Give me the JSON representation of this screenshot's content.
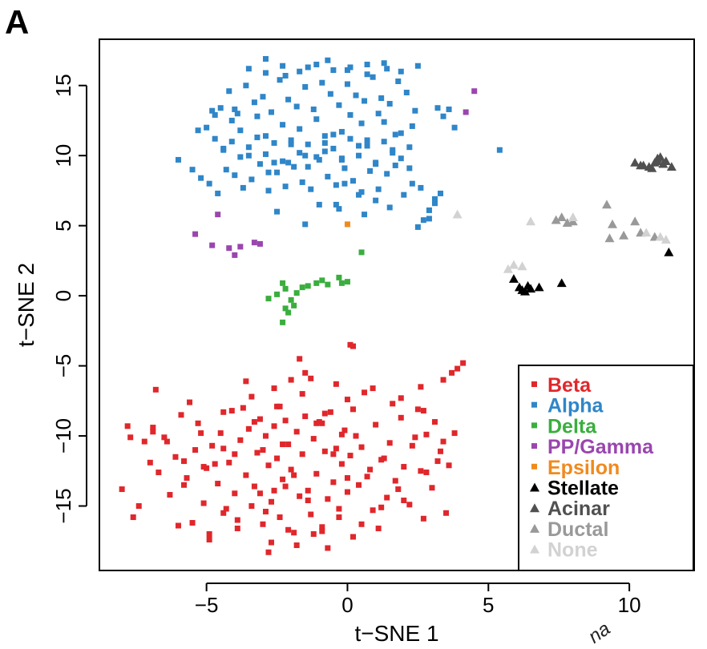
{
  "panel_label": "A",
  "colors": {
    "Beta": "#e0272b",
    "Alpha": "#2f86c8",
    "Delta": "#3aae3e",
    "PP/Gamma": "#9a46ae",
    "Epsilon": "#f08a1e",
    "Stellate": "#000000",
    "Acinar": "#505050",
    "Ductal": "#999999",
    "None": "#d2d2d2"
  },
  "legend_position": "bottom-right",
  "stray_text": "na",
  "chart_data": {
    "type": "scatter",
    "title": "",
    "xlabel": "t−SNE 1",
    "ylabel": "t−SNE 2",
    "xlim": [
      -8.8,
      12.3
    ],
    "ylim": [
      -19.6,
      18.3
    ],
    "xticks": [
      -5,
      0,
      5,
      10
    ],
    "yticks": [
      -15,
      -10,
      -5,
      0,
      5,
      10,
      15
    ],
    "xtick_labels": [
      "−5",
      "0",
      "5",
      "10"
    ],
    "ytick_labels": [
      "−15",
      "−10",
      "−5",
      "0",
      "5",
      "10",
      "15"
    ],
    "grid": false,
    "legend": [
      {
        "name": "Beta",
        "marker": "square"
      },
      {
        "name": "Alpha",
        "marker": "square"
      },
      {
        "name": "Delta",
        "marker": "square"
      },
      {
        "name": "PP/Gamma",
        "marker": "square"
      },
      {
        "name": "Epsilon",
        "marker": "square"
      },
      {
        "name": "Stellate",
        "marker": "triangle"
      },
      {
        "name": "Acinar",
        "marker": "triangle"
      },
      {
        "name": "Ductal",
        "marker": "triangle"
      },
      {
        "name": "None",
        "marker": "triangle"
      }
    ],
    "series": [
      {
        "name": "Beta",
        "marker": "square",
        "x": [
          -8.0,
          -7.6,
          -7.2,
          -6.9,
          -6.7,
          -6.5,
          -6.3,
          -6.1,
          -5.9,
          -5.7,
          -5.5,
          -5.4,
          -5.3,
          -5.1,
          -5.0,
          -4.9,
          -4.8,
          -4.6,
          -4.5,
          -4.4,
          -4.2,
          -4.1,
          -4.0,
          -3.9,
          -3.8,
          -3.6,
          -3.5,
          -3.4,
          -3.3,
          -3.2,
          -3.1,
          -3.0,
          -2.9,
          -2.8,
          -2.7,
          -2.6,
          -2.5,
          -2.4,
          -2.3,
          -2.2,
          -2.1,
          -2.0,
          -1.9,
          -1.8,
          -1.7,
          -1.6,
          -1.5,
          -1.4,
          -1.3,
          -1.2,
          -1.1,
          -1.0,
          -0.9,
          -0.8,
          -0.7,
          -0.6,
          -0.5,
          -0.4,
          -0.3,
          -0.2,
          -0.1,
          0.0,
          0.1,
          0.2,
          0.4,
          0.5,
          0.7,
          0.9,
          1.0,
          1.2,
          1.4,
          1.5,
          1.7,
          1.9,
          2.0,
          2.2,
          2.4,
          2.6,
          2.8,
          3.0,
          3.2,
          3.4,
          3.6,
          3.8,
          -7.8,
          -7.0,
          -6.4,
          -5.8,
          -5.2,
          -4.7,
          -4.3,
          -3.7,
          -3.0,
          -2.6,
          -2.3,
          -1.9,
          -1.4,
          -0.9,
          -0.5,
          0.0,
          0.3,
          0.8,
          1.3,
          1.8,
          2.3,
          2.8,
          3.3,
          -6.8,
          -5.6,
          -4.4,
          -3.4,
          -2.5,
          -1.6,
          -0.8,
          0.0,
          0.6,
          1.6,
          2.5,
          -7.4,
          -6.0,
          -4.9,
          -3.9,
          -2.9,
          -2.1,
          -1.2,
          -0.3,
          0.5,
          1.2,
          2.0,
          2.7,
          3.5,
          -2.7,
          -1.8,
          -0.9,
          0.2,
          1.1,
          3.4,
          3.7,
          3.9,
          4.1,
          2.6,
          2.7,
          -2.8,
          -0.7,
          -1.7,
          0.1,
          0.2,
          -1.5,
          -2.0,
          -3.3,
          -4.4,
          -5.8,
          -6.9,
          -7.7,
          -5.1,
          -3.6,
          -2.4,
          -1.1,
          -0.2,
          -2.2,
          -3.1,
          -4.0,
          -2.6,
          -1.3,
          -0.4,
          0.9,
          1.9,
          3.1
        ],
        "y": [
          -13.8,
          -15.8,
          -10.4,
          -9.4,
          -12.6,
          -10.1,
          -14.2,
          -11.5,
          -8.5,
          -13.0,
          -16.2,
          -11.0,
          -9.1,
          -14.8,
          -12.3,
          -17.0,
          -10.7,
          -13.4,
          -9.8,
          -15.5,
          -11.9,
          -8.2,
          -14.1,
          -16.6,
          -10.3,
          -12.8,
          -9.5,
          -15.0,
          -13.6,
          -11.2,
          -8.8,
          -16.3,
          -10.0,
          -12.1,
          -14.7,
          -9.3,
          -11.6,
          -15.8,
          -13.1,
          -8.9,
          -10.6,
          -12.4,
          -16.9,
          -9.7,
          -14.3,
          -11.3,
          -8.6,
          -13.9,
          -15.6,
          -10.2,
          -12.7,
          -9.0,
          -16.5,
          -11.1,
          -14.5,
          -8.3,
          -13.3,
          -10.9,
          -15.2,
          -12.0,
          -9.6,
          -14.0,
          -11.4,
          -8.1,
          -13.5,
          -10.8,
          -12.9,
          -15.3,
          -9.2,
          -11.7,
          -14.4,
          -10.5,
          -13.2,
          -8.7,
          -12.2,
          -14.9,
          -10.1,
          -12.5,
          -9.9,
          -13.7,
          -11.8,
          -10.4,
          -12.1,
          -9.8,
          -9.3,
          -11.9,
          -10.4,
          -13.5,
          -9.8,
          -12.0,
          -15.2,
          -8.0,
          -11.0,
          -13.9,
          -10.6,
          -12.8,
          -14.6,
          -9.1,
          -11.3,
          -13.0,
          -10.0,
          -12.4,
          -11.6,
          -13.8,
          -10.7,
          -12.6,
          -11.1,
          -6.7,
          -7.6,
          -8.3,
          -7.2,
          -7.9,
          -7.0,
          -8.4,
          -7.4,
          -6.9,
          -7.7,
          -8.1,
          -15.0,
          -16.4,
          -17.4,
          -16.0,
          -15.4,
          -16.7,
          -17.0,
          -15.8,
          -16.3,
          -15.1,
          -14.6,
          -15.9,
          -15.5,
          -17.6,
          -17.8,
          -16.8,
          -17.2,
          -16.6,
          -6.0,
          -5.5,
          -5.2,
          -4.8,
          -6.5,
          -8.2,
          -18.3,
          -18.0,
          -4.5,
          -3.5,
          -3.6,
          -5.5,
          -6.0,
          -9.0,
          -10.9,
          -11.8,
          -9.7,
          -10.1,
          -12.2,
          -6.1,
          -7.9,
          -9.1,
          -9.9,
          -13.6,
          -14.1,
          -11.3,
          -6.6,
          -5.9,
          -6.3,
          -6.6,
          -7.3,
          -9.0
        ]
      },
      {
        "name": "Alpha",
        "marker": "square",
        "x": [
          -5.5,
          -5.0,
          -4.7,
          -4.4,
          -4.1,
          -3.8,
          -3.5,
          -3.2,
          -2.9,
          -2.6,
          -2.3,
          -2.0,
          -1.7,
          -1.4,
          -1.1,
          -0.8,
          -0.5,
          -0.2,
          0.1,
          0.4,
          0.7,
          1.0,
          1.3,
          1.6,
          1.9,
          2.2,
          -5.2,
          -4.9,
          -4.6,
          -4.3,
          -4.0,
          -3.7,
          -3.4,
          -3.1,
          -2.8,
          -2.5,
          -2.2,
          -1.9,
          -1.6,
          -1.3,
          -1.0,
          -0.7,
          -0.4,
          -0.1,
          0.2,
          0.5,
          0.8,
          1.1,
          1.4,
          1.7,
          2.0,
          2.3,
          2.6,
          -4.8,
          -4.5,
          -4.2,
          -3.9,
          -3.6,
          -3.3,
          -3.0,
          -2.7,
          -2.4,
          -2.1,
          -1.8,
          -1.5,
          -1.2,
          -0.9,
          -0.6,
          -0.3,
          0.0,
          0.3,
          0.6,
          0.9,
          1.2,
          1.5,
          1.8,
          2.1,
          2.4,
          -4.4,
          -4.1,
          -3.8,
          -3.5,
          -3.2,
          -2.9,
          -2.6,
          -2.3,
          -2.0,
          -1.7,
          -1.4,
          -1.1,
          -0.8,
          -0.5,
          -0.2,
          0.1,
          0.4,
          0.7,
          1.0,
          1.3,
          1.6,
          1.9,
          2.2,
          -3.5,
          -2.9,
          -2.3,
          -1.7,
          -1.1,
          -0.5,
          0.1,
          0.7,
          1.3,
          1.9,
          2.5,
          -2.9,
          -2.2,
          -1.4,
          -0.7,
          0.0,
          0.7,
          1.4,
          -6.0,
          -5.3,
          -4.7,
          -4.0,
          -2.8,
          -2.1,
          -1.5,
          -0.8,
          -0.2,
          0.5,
          1.1,
          1.7,
          2.3,
          -1.0,
          -0.3,
          0.4,
          1.0,
          3.2,
          3.4,
          3.6,
          3.8,
          3.1,
          2.9,
          2.7,
          2.5,
          2.9,
          3.1,
          3.3,
          -2.5,
          -1.5,
          -0.4,
          0.6,
          1.5,
          5.4,
          -0.1
        ],
        "y": [
          9.0,
          12.0,
          11.2,
          10.5,
          12.5,
          11.8,
          10.0,
          12.8,
          11.4,
          9.5,
          12.2,
          10.8,
          11.9,
          9.2,
          12.6,
          10.3,
          11.5,
          9.8,
          12.9,
          10.7,
          11.1,
          9.4,
          12.4,
          10.2,
          11.6,
          9.1,
          8.4,
          8.0,
          7.3,
          9.0,
          8.6,
          7.7,
          8.3,
          9.4,
          7.5,
          8.8,
          7.8,
          9.2,
          8.1,
          7.6,
          9.7,
          8.5,
          7.9,
          9.1,
          8.2,
          7.4,
          8.9,
          7.6,
          8.7,
          9.3,
          7.2,
          8.0,
          7.7,
          13.2,
          13.4,
          14.6,
          13.0,
          15.0,
          13.8,
          14.2,
          13.1,
          15.4,
          14.0,
          13.5,
          14.9,
          13.3,
          15.2,
          14.4,
          13.6,
          15.1,
          14.3,
          13.9,
          15.6,
          14.1,
          13.7,
          15.3,
          14.5,
          13.2,
          10.4,
          11.0,
          9.9,
          10.6,
          11.3,
          10.1,
          10.9,
          9.6,
          11.1,
          10.2,
          10.8,
          9.9,
          11.4,
          10.5,
          9.7,
          11.2,
          10.0,
          10.7,
          9.5,
          11.0,
          10.4,
          9.8,
          10.6,
          16.2,
          15.9,
          16.4,
          16.0,
          16.5,
          16.1,
          16.3,
          15.8,
          16.6,
          16.0,
          16.4,
          16.9,
          15.7,
          16.3,
          16.8,
          16.1,
          16.5,
          16.2,
          9.7,
          11.8,
          12.9,
          13.3,
          8.8,
          9.5,
          10.0,
          10.9,
          11.7,
          12.3,
          13.0,
          11.5,
          12.1,
          6.5,
          6.2,
          7.2,
          6.8,
          13.4,
          12.8,
          13.3,
          12.0,
          6.6,
          6.1,
          5.4,
          4.9,
          5.5,
          6.9,
          7.3,
          6.0,
          5.1,
          6.5,
          5.8,
          6.3,
          10.4,
          8.0
        ]
      },
      {
        "name": "Delta",
        "marker": "square",
        "x": [
          -2.8,
          -2.5,
          -2.3,
          -2.2,
          -2.0,
          -1.8,
          -1.6,
          -1.4,
          -1.1,
          -0.9,
          -0.7,
          -2.1,
          -2.3,
          -1.9,
          -2.2,
          -0.3,
          -0.2,
          0.0,
          0.5
        ],
        "y": [
          -0.2,
          0.1,
          0.9,
          0.5,
          -0.3,
          0.2,
          0.6,
          0.7,
          0.9,
          1.1,
          0.8,
          -1.2,
          -1.9,
          -0.7,
          -0.9,
          1.3,
          0.9,
          1.0,
          3.1
        ]
      },
      {
        "name": "PP/Gamma",
        "marker": "square",
        "x": [
          -5.4,
          -4.8,
          -4.6,
          -4.2,
          -4.0,
          -3.8,
          -3.3,
          -3.1,
          4.5,
          4.2
        ],
        "y": [
          4.4,
          3.6,
          5.8,
          3.4,
          2.9,
          3.5,
          3.8,
          3.7,
          14.6,
          13.1
        ]
      },
      {
        "name": "Epsilon",
        "marker": "square",
        "x": [
          0.0
        ],
        "y": [
          5.1
        ]
      },
      {
        "name": "Stellate",
        "marker": "triangle",
        "x": [
          5.9,
          6.1,
          6.2,
          6.3,
          6.4,
          6.5,
          6.8,
          7.6,
          11.4
        ],
        "y": [
          1.2,
          0.6,
          0.4,
          0.3,
          0.7,
          0.5,
          0.6,
          0.9,
          3.1
        ]
      },
      {
        "name": "Acinar",
        "marker": "triangle",
        "x": [
          10.2,
          10.5,
          10.7,
          10.9,
          11.0,
          11.1,
          11.2,
          11.3,
          11.5,
          10.8,
          11.0,
          10.4
        ],
        "y": [
          9.5,
          9.3,
          9.2,
          9.5,
          9.8,
          9.9,
          9.4,
          9.6,
          9.2,
          9.1,
          9.6,
          9.3
        ]
      },
      {
        "name": "Ductal",
        "marker": "triangle",
        "x": [
          7.4,
          7.6,
          7.8,
          8.0,
          9.2,
          9.4,
          9.8,
          10.2,
          10.4,
          10.9,
          9.3
        ],
        "y": [
          5.4,
          5.6,
          5.2,
          5.3,
          6.5,
          5.1,
          4.3,
          5.3,
          4.5,
          4.2,
          4.1
        ]
      },
      {
        "name": "None",
        "marker": "triangle",
        "x": [
          3.9,
          5.7,
          5.9,
          6.2,
          6.5,
          8.0,
          10.6,
          11.1,
          11.3
        ],
        "y": [
          5.8,
          1.9,
          2.2,
          2.1,
          5.3,
          5.6,
          4.5,
          4.2,
          4.0
        ]
      }
    ]
  }
}
